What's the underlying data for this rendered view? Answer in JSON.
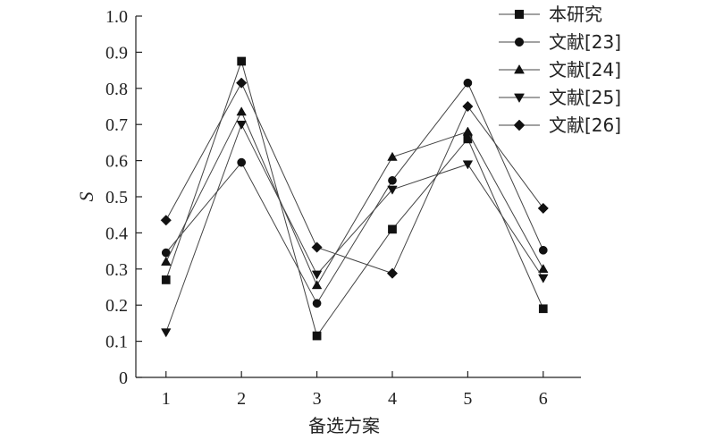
{
  "chart_data": {
    "type": "line",
    "title": "",
    "xlabel": "备选方案",
    "ylabel": "S",
    "x": [
      1,
      2,
      3,
      4,
      5,
      6
    ],
    "xlim": [
      0.6,
      6.5
    ],
    "ylim": [
      0,
      1.0
    ],
    "yticks": [
      "0",
      "0.1",
      "0.2",
      "0.3",
      "0.4",
      "0.5",
      "0.6",
      "0.7",
      "0.8",
      "0.9",
      "1.0"
    ],
    "xticks": [
      "1",
      "2",
      "3",
      "4",
      "5",
      "6"
    ],
    "grid": false,
    "legend_position": "top-right",
    "line_color": "#444444",
    "marker_color": "#111111",
    "series": [
      {
        "name": "本研究",
        "marker": "square",
        "values": [
          0.27,
          0.875,
          0.115,
          0.41,
          0.66,
          0.19
        ]
      },
      {
        "name": "文献[23]",
        "marker": "circle",
        "values": [
          0.345,
          0.595,
          0.205,
          0.545,
          0.815,
          0.352
        ]
      },
      {
        "name": "文献[24]",
        "marker": "triangle-up",
        "values": [
          0.32,
          0.735,
          0.255,
          0.61,
          0.68,
          0.3
        ]
      },
      {
        "name": "文献[25]",
        "marker": "triangle-down",
        "values": [
          0.125,
          0.7,
          0.285,
          0.52,
          0.59,
          0.275
        ]
      },
      {
        "name": "文献[26]",
        "marker": "diamond",
        "values": [
          0.435,
          0.815,
          0.36,
          0.288,
          0.75,
          0.468
        ]
      }
    ]
  }
}
